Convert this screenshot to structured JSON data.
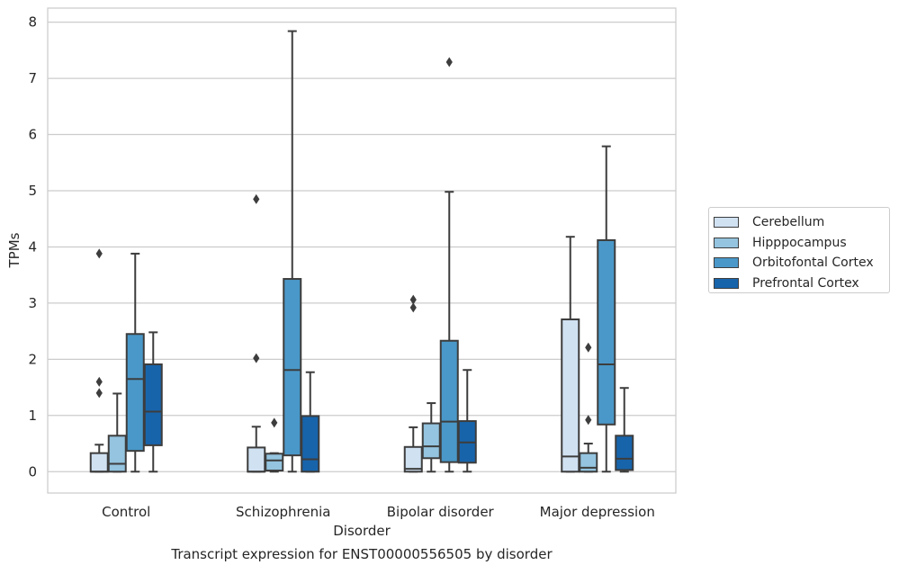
{
  "chart_data": {
    "type": "box",
    "title": "Transcript expression for ENST00000556505 by disorder",
    "xlabel": "Disorder",
    "ylabel": "TPMs",
    "ylim": [
      -0.38,
      8.25
    ],
    "yticks": [
      "0",
      "1",
      "2",
      "3",
      "4",
      "5",
      "6",
      "7",
      "8"
    ],
    "grid": "horizontal",
    "legend_position": "right",
    "categories": [
      "Control",
      "Schizophrenia",
      "Bipolar disorder",
      "Major depression"
    ],
    "series": [
      {
        "name": "Cerebellum",
        "color": "#d0e1f2",
        "boxes": [
          {
            "whislo": 0,
            "q1": 0,
            "med": 0,
            "q3": 0.33,
            "whishi": 0.48,
            "fliers": [
              1.4,
              1.6,
              3.88
            ]
          },
          {
            "whislo": 0,
            "q1": 0,
            "med": 0,
            "q3": 0.43,
            "whishi": 0.8,
            "fliers": [
              2.02,
              4.85
            ]
          },
          {
            "whislo": 0,
            "q1": 0,
            "med": 0.05,
            "q3": 0.44,
            "whishi": 0.79,
            "fliers": [
              2.92,
              3.06
            ]
          },
          {
            "whislo": 0,
            "q1": 0,
            "med": 0.27,
            "q3": 2.71,
            "whishi": 4.18,
            "fliers": []
          }
        ]
      },
      {
        "name": "Hipppocampus",
        "color": "#94c4df",
        "boxes": [
          {
            "whislo": 0,
            "q1": 0,
            "med": 0.14,
            "q3": 0.64,
            "whishi": 1.39,
            "fliers": []
          },
          {
            "whislo": 0,
            "q1": 0.02,
            "med": 0.2,
            "q3": 0.32,
            "whishi": 0.33,
            "fliers": [
              0.87
            ]
          },
          {
            "whislo": 0,
            "q1": 0.24,
            "med": 0.45,
            "q3": 0.86,
            "whishi": 1.22,
            "fliers": []
          },
          {
            "whislo": 0,
            "q1": 0,
            "med": 0.07,
            "q3": 0.33,
            "whishi": 0.5,
            "fliers": [
              0.92,
              2.21
            ]
          }
        ]
      },
      {
        "name": "Orbitofontal Cortex",
        "color": "#4a98c9",
        "boxes": [
          {
            "whislo": 0,
            "q1": 0.37,
            "med": 1.65,
            "q3": 2.45,
            "whishi": 3.88,
            "fliers": []
          },
          {
            "whislo": 0,
            "q1": 0.29,
            "med": 1.81,
            "q3": 3.43,
            "whishi": 7.84,
            "fliers": []
          },
          {
            "whislo": 0,
            "q1": 0.17,
            "med": 0.89,
            "q3": 2.33,
            "whishi": 4.98,
            "fliers": [
              7.29
            ]
          },
          {
            "whislo": 0,
            "q1": 0.84,
            "med": 1.91,
            "q3": 4.12,
            "whishi": 5.79,
            "fliers": []
          }
        ]
      },
      {
        "name": "Prefrontal Cortex",
        "color": "#1764ab",
        "boxes": [
          {
            "whislo": 0,
            "q1": 0.47,
            "med": 1.07,
            "q3": 1.91,
            "whishi": 2.48,
            "fliers": []
          },
          {
            "whislo": 0,
            "q1": 0,
            "med": 0.22,
            "q3": 0.99,
            "whishi": 1.77,
            "fliers": []
          },
          {
            "whislo": 0,
            "q1": 0.16,
            "med": 0.52,
            "q3": 0.9,
            "whishi": 1.81,
            "fliers": []
          },
          {
            "whislo": 0,
            "q1": 0.03,
            "med": 0.23,
            "q3": 0.64,
            "whishi": 1.49,
            "fliers": []
          }
        ]
      }
    ]
  }
}
